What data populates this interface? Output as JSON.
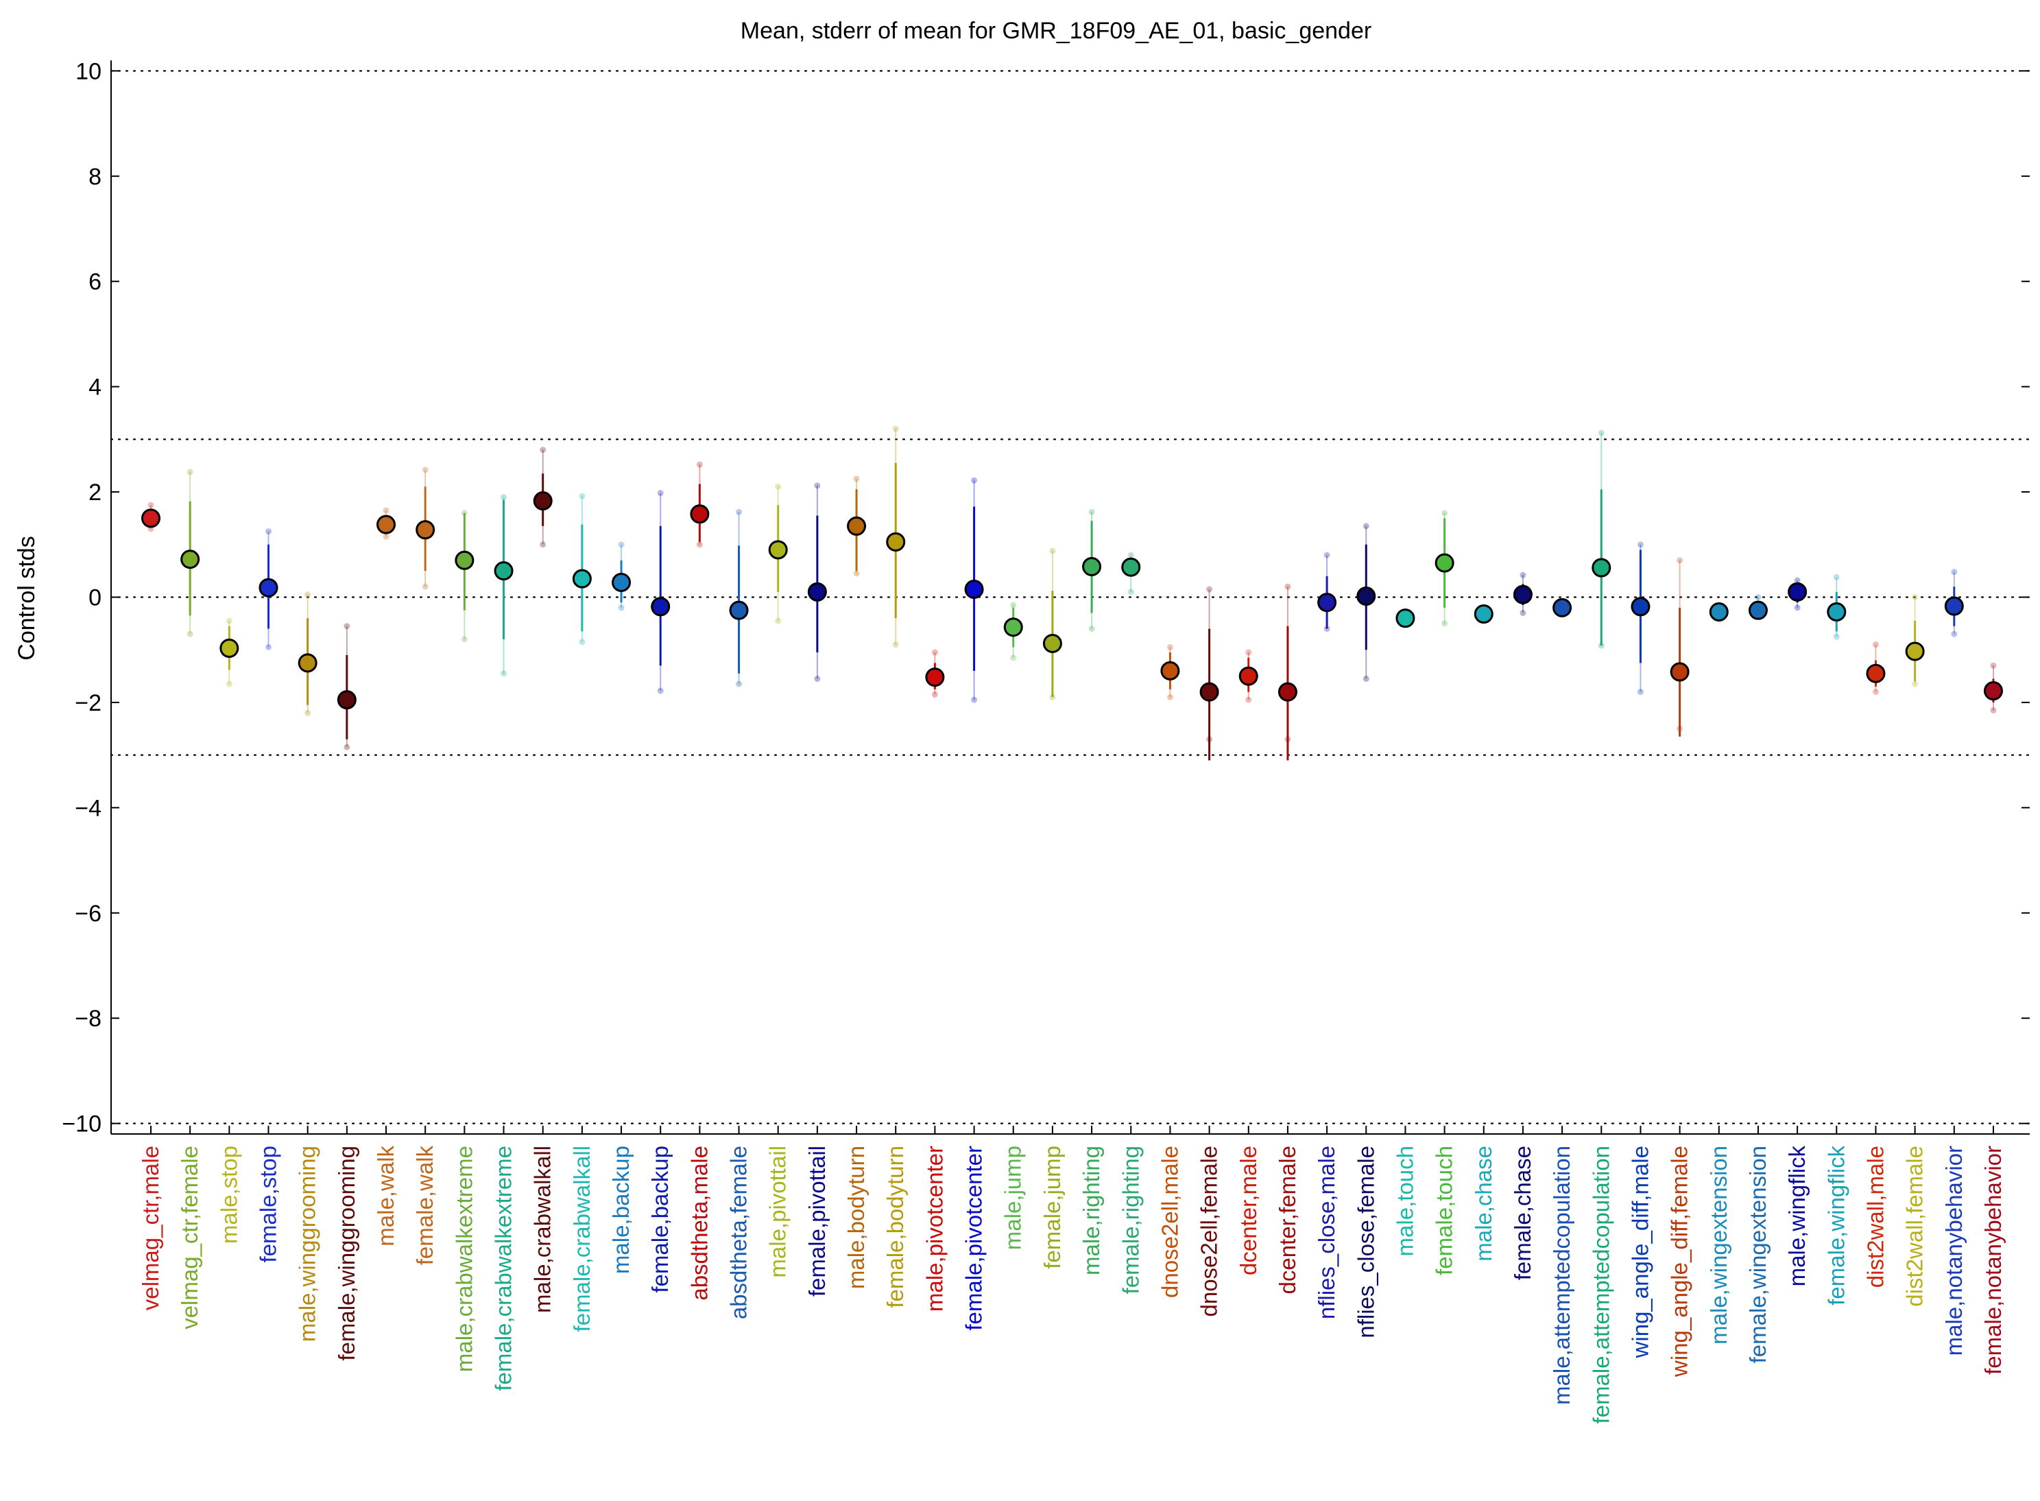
{
  "chart_data": {
    "type": "scatter",
    "title": "Mean, stderr of mean for GMR_18F09_AE_01, basic_gender",
    "xlabel": "",
    "ylabel": "Control stds",
    "ylim": [
      -10.2,
      10.2
    ],
    "yticks": [
      10,
      8,
      6,
      4,
      2,
      0,
      -2,
      -4,
      -6,
      -8,
      -10
    ],
    "ytick_labels": [
      "10",
      "8",
      "6",
      "4",
      "2",
      "0",
      "−2",
      "−4",
      "−6",
      "−8",
      "−10"
    ],
    "reference_lines": [
      10,
      3,
      0,
      -3,
      -10
    ],
    "grid": false,
    "legend": "none",
    "series": [
      {
        "label": "velmag_ctr,male",
        "color": "#cc1a1a",
        "mean": 1.5,
        "stderr_low": 1.35,
        "stderr_high": 1.65,
        "range_low": 1.3,
        "range_high": 1.75
      },
      {
        "label": "velmag_ctr,female",
        "color": "#7aaa2a",
        "mean": 0.72,
        "stderr_low": -0.35,
        "stderr_high": 1.82,
        "range_low": -0.7,
        "range_high": 2.38
      },
      {
        "label": "male,stop",
        "color": "#b5b51a",
        "mean": -0.97,
        "stderr_low": -1.38,
        "stderr_high": -0.55,
        "range_low": -1.65,
        "range_high": -0.45
      },
      {
        "label": "female,stop",
        "color": "#1a2ecc",
        "mean": 0.18,
        "stderr_low": -0.6,
        "stderr_high": 1.0,
        "range_low": -0.95,
        "range_high": 1.25
      },
      {
        "label": "male,winggrooming",
        "color": "#b58a0f",
        "mean": -1.25,
        "stderr_low": -2.05,
        "stderr_high": -0.4,
        "range_low": -2.2,
        "range_high": 0.05
      },
      {
        "label": "female,winggrooming",
        "color": "#5a0a0a",
        "mean": -1.95,
        "stderr_low": -2.7,
        "stderr_high": -1.1,
        "range_low": -2.85,
        "range_high": -0.55
      },
      {
        "label": "male,walk",
        "color": "#c0661a",
        "mean": 1.38,
        "stderr_low": 1.2,
        "stderr_high": 1.55,
        "range_low": 1.15,
        "range_high": 1.65
      },
      {
        "label": "female,walk",
        "color": "#c0661a",
        "mean": 1.28,
        "stderr_low": 0.5,
        "stderr_high": 2.1,
        "range_low": 0.2,
        "range_high": 2.42
      },
      {
        "label": "male,crabwalkextreme",
        "color": "#6aab3a",
        "mean": 0.7,
        "stderr_low": -0.25,
        "stderr_high": 1.6,
        "range_low": -0.8,
        "range_high": 1.6
      },
      {
        "label": "female,crabwalkextreme",
        "color": "#1aaa88",
        "mean": 0.5,
        "stderr_low": -0.8,
        "stderr_high": 1.85,
        "range_low": -1.45,
        "range_high": 1.9
      },
      {
        "label": "male,crabwalkall",
        "color": "#5a0a0a",
        "mean": 1.83,
        "stderr_low": 1.35,
        "stderr_high": 2.35,
        "range_low": 1.0,
        "range_high": 2.8
      },
      {
        "label": "female,crabwalkall",
        "color": "#1ab8b0",
        "mean": 0.35,
        "stderr_low": -0.65,
        "stderr_high": 1.38,
        "range_low": -0.85,
        "range_high": 1.92
      },
      {
        "label": "male,backup",
        "color": "#1a7ac0",
        "mean": 0.28,
        "stderr_low": -0.1,
        "stderr_high": 0.7,
        "range_low": -0.2,
        "range_high": 1.0
      },
      {
        "label": "female,backup",
        "color": "#0a1ab0",
        "mean": -0.18,
        "stderr_low": -1.3,
        "stderr_high": 1.35,
        "range_low": -1.78,
        "range_high": 1.98
      },
      {
        "label": "absdtheta,male",
        "color": "#b80a0a",
        "mean": 1.58,
        "stderr_low": 1.05,
        "stderr_high": 2.15,
        "range_low": 1.0,
        "range_high": 2.52
      },
      {
        "label": "absdtheta,female",
        "color": "#1a5ab0",
        "mean": -0.25,
        "stderr_low": -1.45,
        "stderr_high": 0.98,
        "range_low": -1.65,
        "range_high": 1.62
      },
      {
        "label": "male,pivottail",
        "color": "#a8b51a",
        "mean": 0.9,
        "stderr_low": 0.1,
        "stderr_high": 1.75,
        "range_low": -0.45,
        "range_high": 2.1
      },
      {
        "label": "female,pivottail",
        "color": "#0a0a88",
        "mean": 0.1,
        "stderr_low": -1.05,
        "stderr_high": 1.55,
        "range_low": -1.55,
        "range_high": 2.12
      },
      {
        "label": "male,bodyturn",
        "color": "#b5660a",
        "mean": 1.35,
        "stderr_low": 0.5,
        "stderr_high": 2.05,
        "range_low": 0.45,
        "range_high": 2.25
      },
      {
        "label": "female,bodyturn",
        "color": "#b59a0a",
        "mean": 1.05,
        "stderr_low": -0.4,
        "stderr_high": 2.55,
        "range_low": -0.9,
        "range_high": 3.2
      },
      {
        "label": "male,pivotcenter",
        "color": "#cc0a0a",
        "mean": -1.52,
        "stderr_low": -1.75,
        "stderr_high": -1.25,
        "range_low": -1.85,
        "range_high": -1.05
      },
      {
        "label": "female,pivotcenter",
        "color": "#0a0acc",
        "mean": 0.15,
        "stderr_low": -1.4,
        "stderr_high": 1.72,
        "range_low": -1.95,
        "range_high": 2.22
      },
      {
        "label": "male,jump",
        "color": "#5ab84a",
        "mean": -0.57,
        "stderr_low": -0.95,
        "stderr_high": -0.2,
        "range_low": -1.15,
        "range_high": -0.15
      },
      {
        "label": "female,jump",
        "color": "#9aaa1a",
        "mean": -0.88,
        "stderr_low": -1.9,
        "stderr_high": 0.12,
        "range_low": -1.9,
        "range_high": 0.88
      },
      {
        "label": "male,righting",
        "color": "#3aaa5a",
        "mean": 0.58,
        "stderr_low": -0.3,
        "stderr_high": 1.45,
        "range_low": -0.6,
        "range_high": 1.62
      },
      {
        "label": "female,righting",
        "color": "#2aa870",
        "mean": 0.57,
        "stderr_low": 0.4,
        "stderr_high": 0.75,
        "range_low": 0.1,
        "range_high": 0.8
      },
      {
        "label": "dnose2ell,male",
        "color": "#c0500a",
        "mean": -1.4,
        "stderr_low": -1.75,
        "stderr_high": -1.05,
        "range_low": -1.9,
        "range_high": -0.95
      },
      {
        "label": "dnose2ell,female",
        "color": "#6a0a0a",
        "mean": -1.8,
        "stderr_low": -3.1,
        "stderr_high": -0.6,
        "range_low": -2.7,
        "range_high": 0.15
      },
      {
        "label": "dcenter,male",
        "color": "#cc1a0a",
        "mean": -1.5,
        "stderr_low": -1.8,
        "stderr_high": -1.15,
        "range_low": -1.95,
        "range_high": -1.05
      },
      {
        "label": "dcenter,female",
        "color": "#9a0a0a",
        "mean": -1.8,
        "stderr_low": -3.1,
        "stderr_high": -0.55,
        "range_low": -2.7,
        "range_high": 0.2
      },
      {
        "label": "nflies_close,male",
        "color": "#1a1aa8",
        "mean": -0.1,
        "stderr_low": -0.6,
        "stderr_high": 0.4,
        "range_low": -0.6,
        "range_high": 0.8
      },
      {
        "label": "nflies_close,female",
        "color": "#0a0a60",
        "mean": 0.02,
        "stderr_low": -1.0,
        "stderr_high": 1.0,
        "range_low": -1.55,
        "range_high": 1.35
      },
      {
        "label": "male,touch",
        "color": "#1ab8a8",
        "mean": -0.4,
        "stderr_low": -0.45,
        "stderr_high": -0.35,
        "range_low": -0.45,
        "range_high": -0.35
      },
      {
        "label": "female,touch",
        "color": "#4ab83a",
        "mean": 0.65,
        "stderr_low": -0.2,
        "stderr_high": 1.5,
        "range_low": -0.5,
        "range_high": 1.6
      },
      {
        "label": "male,chase",
        "color": "#1aa8b8",
        "mean": -0.32,
        "stderr_low": -0.35,
        "stderr_high": -0.28,
        "range_low": -0.35,
        "range_high": -0.28
      },
      {
        "label": "female,chase",
        "color": "#0a0a70",
        "mean": 0.05,
        "stderr_low": -0.15,
        "stderr_high": 0.25,
        "range_low": -0.3,
        "range_high": 0.42
      },
      {
        "label": "male,attemptedcopulation",
        "color": "#1a50b0",
        "mean": -0.2,
        "stderr_low": -0.22,
        "stderr_high": -0.18,
        "range_low": -0.22,
        "range_high": -0.18
      },
      {
        "label": "female,attemptedcopulation",
        "color": "#1aa87a",
        "mean": 0.56,
        "stderr_low": -0.92,
        "stderr_high": 2.05,
        "range_low": -0.92,
        "range_high": 3.12
      },
      {
        "label": "wing_angle_diff,male",
        "color": "#0a3ab0",
        "mean": -0.18,
        "stderr_low": -1.25,
        "stderr_high": 0.9,
        "range_low": -1.8,
        "range_high": 1.0
      },
      {
        "label": "wing_angle_diff,female",
        "color": "#b83a0a",
        "mean": -1.42,
        "stderr_low": -2.65,
        "stderr_high": -0.2,
        "range_low": -2.5,
        "range_high": 0.7
      },
      {
        "label": "male,wingextension",
        "color": "#1a8ab8",
        "mean": -0.28,
        "stderr_low": -0.3,
        "stderr_high": -0.26,
        "range_low": -0.3,
        "range_high": -0.26
      },
      {
        "label": "female,wingextension",
        "color": "#1a6ab0",
        "mean": -0.25,
        "stderr_low": -0.3,
        "stderr_high": -0.2,
        "range_low": -0.3,
        "range_high": 0.0
      },
      {
        "label": "male,wingflick",
        "color": "#0a0a98",
        "mean": 0.1,
        "stderr_low": -0.1,
        "stderr_high": 0.28,
        "range_low": -0.2,
        "range_high": 0.32
      },
      {
        "label": "female,wingflick",
        "color": "#1aa0b8",
        "mean": -0.28,
        "stderr_low": -0.65,
        "stderr_high": 0.1,
        "range_low": -0.75,
        "range_high": 0.38
      },
      {
        "label": "dist2wall,male",
        "color": "#cc2a0a",
        "mean": -1.45,
        "stderr_low": -1.7,
        "stderr_high": -1.2,
        "range_low": -1.8,
        "range_high": -0.9
      },
      {
        "label": "dist2wall,female",
        "color": "#b8b01a",
        "mean": -1.03,
        "stderr_low": -1.6,
        "stderr_high": -0.45,
        "range_low": -1.65,
        "range_high": 0.0
      },
      {
        "label": "male,notanybehavior",
        "color": "#1a3ab8",
        "mean": -0.17,
        "stderr_low": -0.55,
        "stderr_high": 0.2,
        "range_low": -0.7,
        "range_high": 0.48
      },
      {
        "label": "female,notanybehavior",
        "color": "#a00a1a",
        "mean": -1.78,
        "stderr_low": -2.0,
        "stderr_high": -1.55,
        "range_low": -2.15,
        "range_high": -1.3
      }
    ]
  }
}
